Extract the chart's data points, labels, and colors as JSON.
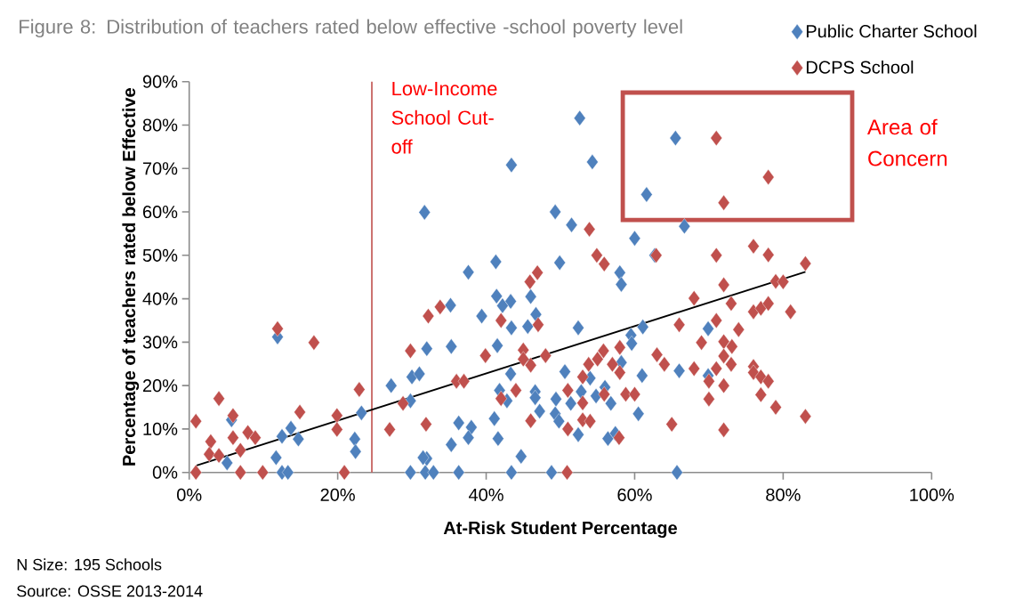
{
  "chart_data": {
    "type": "scatter",
    "title": "Figure 8: Distribution of teachers rated below effective -school poverty level",
    "xlabel": "At-Risk Student Percentage",
    "ylabel": "Percentage of teachers rated below Effective",
    "annotations": [
      "Area of Concern",
      "N Size: 195 Schools",
      "Source: OSSE 2013-2014"
    ],
    "xlim": [
      0,
      100
    ],
    "ylim": [
      0,
      90
    ],
    "xticks": [
      {
        "value": 0,
        "label": "0%"
      },
      {
        "value": 20,
        "label": "20%"
      },
      {
        "value": 40,
        "label": "40%"
      },
      {
        "value": 60,
        "label": "60%"
      },
      {
        "value": 80,
        "label": "80%"
      },
      {
        "value": 100,
        "label": "100%"
      }
    ],
    "yticks": [
      {
        "value": 0,
        "label": "0%"
      },
      {
        "value": 10,
        "label": "10%"
      },
      {
        "value": 20,
        "label": "20%"
      },
      {
        "value": 30,
        "label": "30%"
      },
      {
        "value": 40,
        "label": "40%"
      },
      {
        "value": 50,
        "label": "50%"
      },
      {
        "value": 60,
        "label": "60%"
      },
      {
        "value": 70,
        "label": "70%"
      },
      {
        "value": 80,
        "label": "80%"
      },
      {
        "value": 90,
        "label": "90%"
      }
    ],
    "ref_lines": [
      {
        "axis": "x",
        "value": 24.6,
        "label": "Low-Income School Cut-off",
        "color": "#c0504d"
      }
    ],
    "legend": "top right",
    "marker": "diamond",
    "series": [
      {
        "name": "Public Charter School",
        "color": "#4f81bd",
        "x": [
          52.6,
          65.5,
          54.3,
          43.4,
          61.6,
          31.7,
          49.3,
          51.5,
          66.7,
          60.0,
          62.7,
          41.3,
          37.6,
          49.9,
          58.0,
          58.2,
          41.4,
          43.3,
          42.2,
          46.0,
          35.2,
          39.4,
          43.4,
          45.6,
          46.7,
          52.4,
          61.1,
          59.5,
          59.6,
          58.2,
          61.0,
          32.0,
          35.3,
          41.5,
          50.6,
          54.0,
          43.3,
          41.8,
          42.8,
          46.6,
          46.6,
          49.4,
          52.8,
          51.4,
          54.8,
          56.0,
          56.8,
          60.5,
          47.2,
          41.1,
          49.3,
          49.8,
          52.4,
          56.4,
          57.4,
          36.3,
          38.0,
          37.6,
          35.3,
          41.6,
          44.7,
          32.0,
          36.3,
          43.4,
          48.8,
          65.7,
          69.9,
          66.0,
          69.9,
          11.9,
          27.2,
          30.0,
          31.0,
          29.8,
          23.2,
          22.3,
          22.4,
          29.8,
          31.8,
          32.9,
          31.5,
          5.7,
          5.1,
          12.5,
          13.7,
          14.7,
          11.7,
          12.5,
          13.3
        ],
        "values": [
          81.6,
          77.0,
          71.5,
          70.8,
          64.0,
          59.9,
          60.0,
          57.0,
          56.7,
          53.9,
          50.0,
          48.5,
          46.1,
          48.3,
          46.0,
          43.3,
          40.6,
          39.4,
          38.4,
          40.5,
          38.5,
          36.0,
          33.3,
          33.6,
          36.4,
          33.3,
          33.5,
          31.6,
          29.7,
          25.3,
          22.3,
          28.5,
          29.0,
          29.2,
          23.2,
          21.7,
          22.7,
          18.9,
          16.5,
          18.6,
          17.2,
          16.9,
          18.6,
          15.9,
          17.6,
          19.6,
          15.9,
          13.5,
          14.1,
          12.4,
          13.5,
          11.8,
          8.7,
          7.8,
          9.0,
          11.4,
          10.4,
          8.0,
          6.4,
          7.8,
          3.7,
          3.2,
          0,
          0,
          0,
          0,
          33.1,
          23.4,
          22.3,
          31.2,
          20.0,
          22.0,
          22.7,
          16.5,
          13.7,
          7.7,
          4.8,
          0,
          0,
          0,
          3.4,
          12.1,
          2.2,
          8.3,
          10.2,
          7.7,
          3.4,
          0,
          0
        ]
      },
      {
        "name": "DCPS School",
        "color": "#c0504d",
        "x": [
          53.9,
          62.9,
          54.9,
          55.9,
          46.9,
          45.9,
          71.0,
          78.0,
          72.0,
          71.0,
          76.0,
          78.0,
          83.0,
          72.0,
          79.0,
          80.0,
          68.0,
          73.0,
          76.0,
          77.0,
          78.0,
          81.0,
          66.0,
          71.0,
          74.0,
          69.0,
          72.0,
          73.1,
          72.0,
          73.0,
          68.0,
          71.0,
          76.0,
          76.0,
          77.0,
          78.0,
          70.0,
          72.0,
          70.0,
          77.0,
          79.0,
          83.0,
          72.0,
          33.8,
          32.2,
          42.0,
          47.0,
          58.0,
          55.8,
          55.0,
          53.8,
          57.0,
          58.0,
          63.0,
          64.0,
          39.9,
          45.0,
          45.0,
          46.0,
          48.0,
          53.0,
          36.0,
          37.0,
          44.0,
          42.0,
          51.0,
          53.0,
          55.9,
          58.8,
          60.0,
          65.0,
          46.0,
          53.0,
          54.0,
          51.0,
          57.9,
          50.9,
          11.9,
          16.8,
          29.8,
          28.8,
          27.0,
          31.9,
          22.9,
          19.9,
          19.9,
          20.9,
          0.9,
          4.0,
          5.9,
          2.9,
          5.9,
          7.9,
          8.9,
          2.7,
          4.0,
          6.9,
          0.9,
          6.9,
          9.9,
          14.9
        ],
        "values": [
          56.0,
          50.0,
          50.0,
          48.0,
          46.0,
          43.9,
          77.0,
          68.0,
          62.1,
          50.0,
          52.1,
          50.1,
          48.1,
          43.2,
          44.0,
          43.9,
          40.1,
          38.9,
          37.0,
          37.8,
          38.9,
          37.0,
          34.0,
          35.0,
          32.9,
          29.9,
          30.1,
          29.0,
          26.8,
          24.9,
          23.9,
          23.9,
          24.4,
          23.0,
          22.0,
          21.0,
          21.0,
          20.0,
          16.9,
          17.9,
          15.0,
          12.9,
          9.8,
          38.1,
          36.0,
          35.0,
          34.0,
          28.8,
          28.0,
          26.1,
          24.9,
          24.9,
          23.0,
          27.1,
          24.9,
          26.9,
          28.2,
          26.1,
          24.7,
          26.9,
          22.0,
          21.0,
          21.0,
          18.9,
          17.0,
          18.9,
          16.0,
          18.0,
          18.0,
          18.0,
          11.1,
          11.9,
          12.1,
          11.8,
          10.0,
          8.0,
          0,
          33.1,
          29.9,
          28.0,
          15.9,
          9.9,
          11.1,
          19.1,
          13.1,
          9.9,
          0,
          11.8,
          17.0,
          13.1,
          7.1,
          8.0,
          9.2,
          8.0,
          4.2,
          3.9,
          5.1,
          0,
          0,
          0,
          13.9
        ]
      },
      {
        "type": "line",
        "color": "#000000",
        "marker": "none",
        "x": [
          1,
          83
        ],
        "values": [
          1.6,
          46.2
        ]
      }
    ]
  }
}
